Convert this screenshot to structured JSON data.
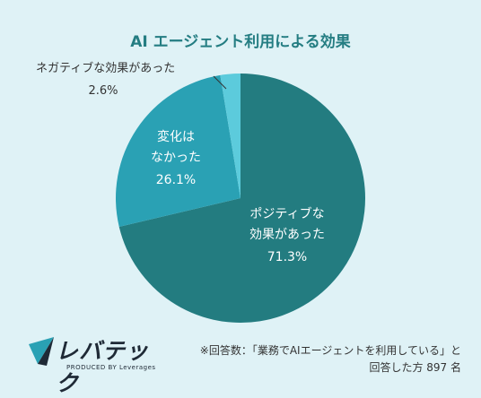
{
  "title": "AI エージェント利用による効果",
  "chart_data": {
    "type": "pie",
    "slices": [
      {
        "label_lines": [
          "ポジティブな",
          "効果があった"
        ],
        "value": 71.3,
        "value_text": "71.3%",
        "color": "#237c80"
      },
      {
        "label_lines": [
          "変化は",
          "なかった"
        ],
        "value": 26.1,
        "value_text": "26.1%",
        "color": "#2aa1b4"
      },
      {
        "label_lines": [
          "ネガティブな効果があった"
        ],
        "value": 2.6,
        "value_text": "2.6%",
        "color": "#5ccbdc"
      }
    ]
  },
  "logo": {
    "name": "レバテック",
    "sub": "PRODUCED BY Leverages"
  },
  "note": {
    "line1": "※回答数：「業務でAIエージェントを利用している」と",
    "line2": "回答した方 897 名"
  }
}
